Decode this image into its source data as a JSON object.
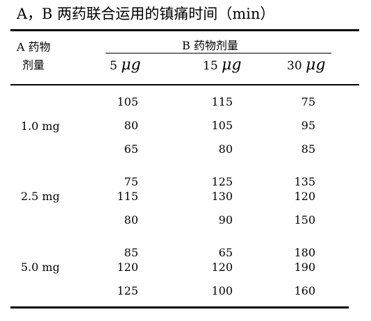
{
  "title": "A，B 两药联合运用的镇痛时间（min）",
  "header": {
    "a_label_line1": "A 药物",
    "a_label_line2": "剂量",
    "b_label": "B 药物剂量",
    "b_doses": [
      {
        "num": "5",
        "unit": "μg"
      },
      {
        "num": "15",
        "unit": "μg"
      },
      {
        "num": "30",
        "unit": "μg"
      }
    ]
  },
  "groups": [
    {
      "a_dose": "1.0 mg",
      "rows": [
        [
          "105",
          "115",
          "75"
        ],
        [
          "80",
          "105",
          "95"
        ],
        [
          "65",
          "80",
          "85"
        ]
      ]
    },
    {
      "a_dose": "2.5 mg",
      "rows": [
        [
          "75",
          "125",
          "135"
        ],
        [
          "115",
          "130",
          "120"
        ],
        [
          "80",
          "90",
          "150"
        ]
      ]
    },
    {
      "a_dose": "5.0 mg",
      "rows": [
        [
          "85",
          "65",
          "180"
        ],
        [
          "120",
          "120",
          "190"
        ],
        [
          "125",
          "100",
          "160"
        ]
      ]
    }
  ]
}
